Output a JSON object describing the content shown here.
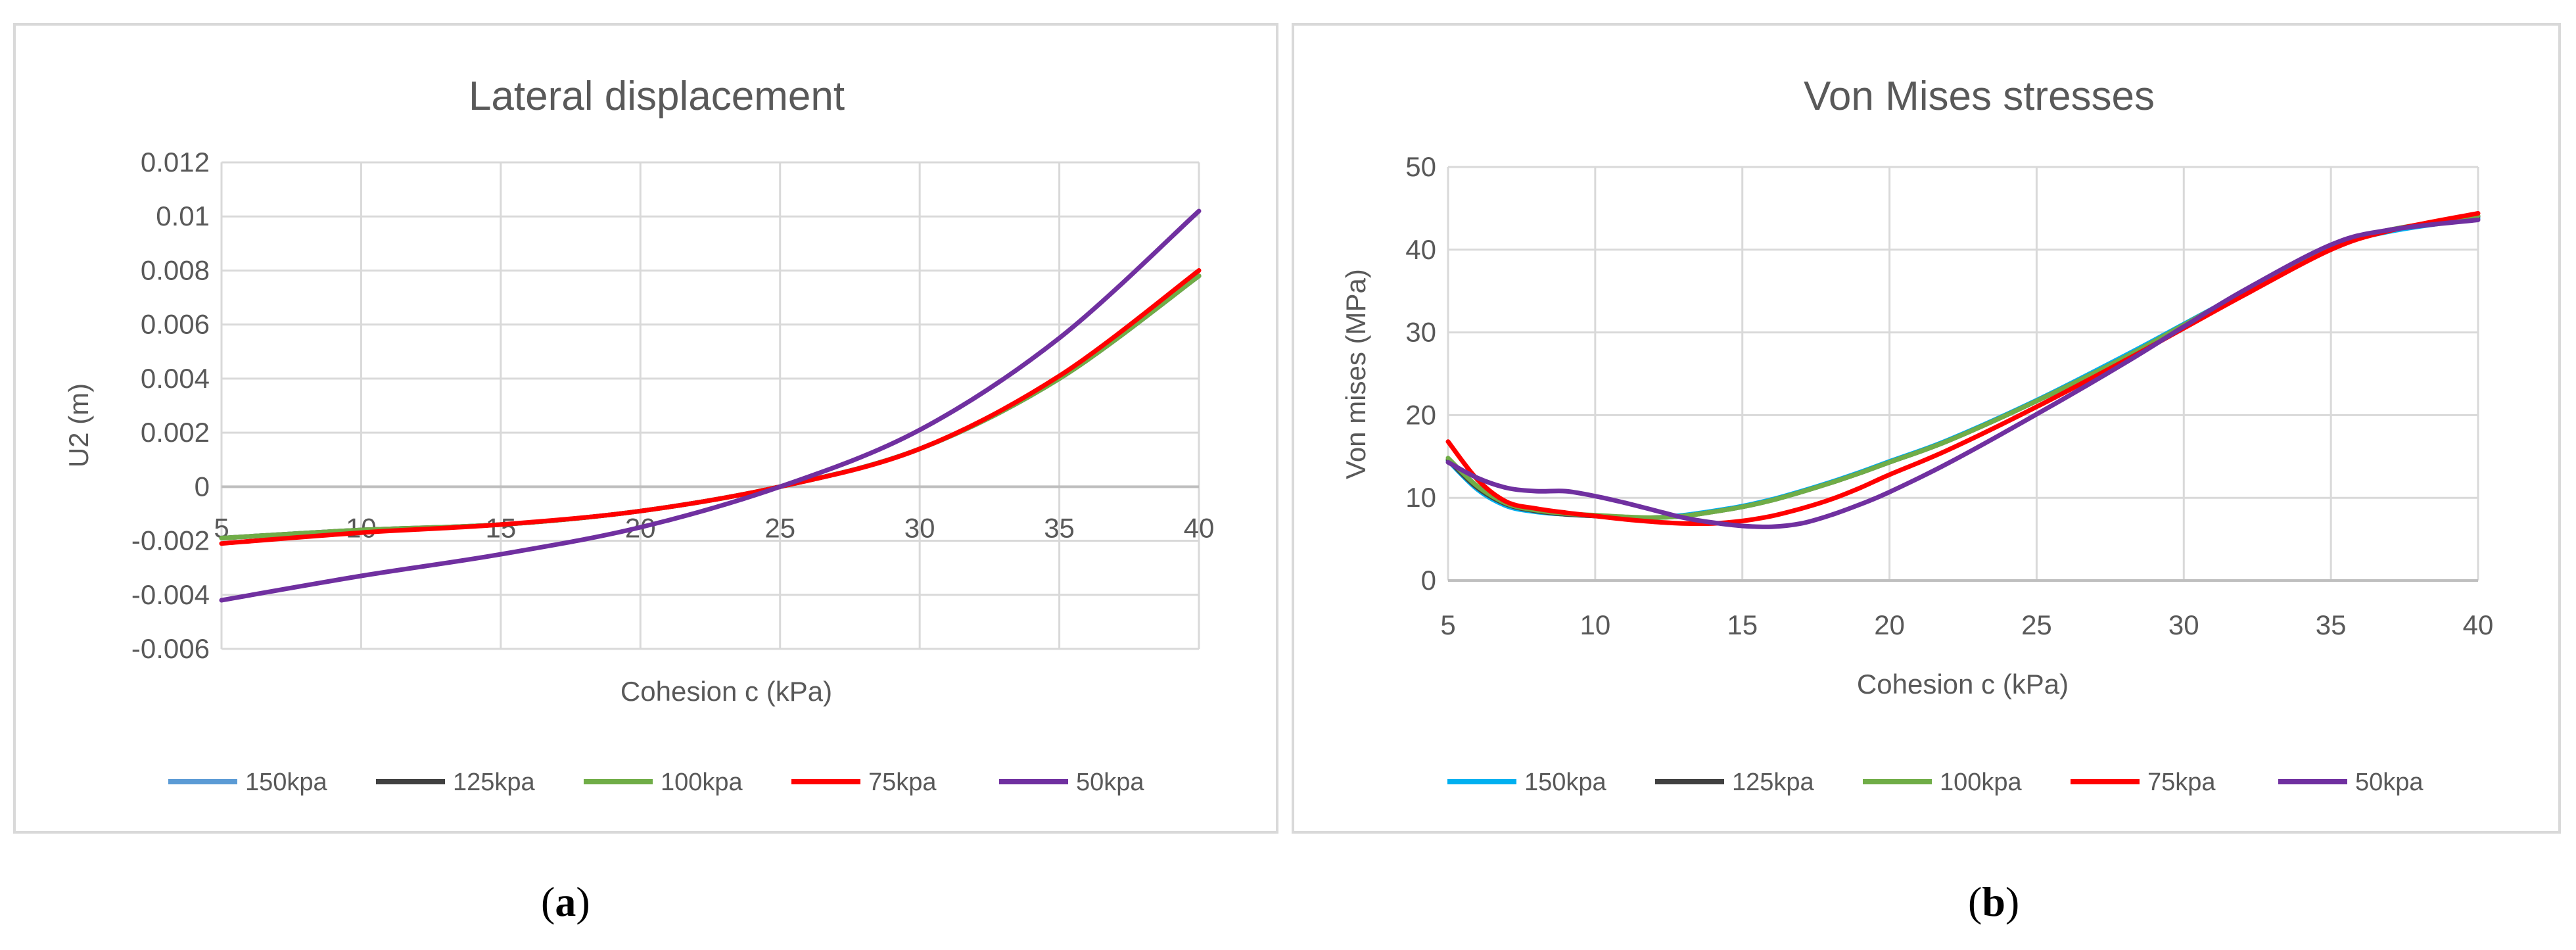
{
  "chart_data": [
    {
      "type": "line",
      "panel": "a",
      "title": "Lateral displacement",
      "xlabel": "Cohesion c (kPa)",
      "ylabel": "U2 (m)",
      "xlim": [
        5,
        40
      ],
      "ylim": [
        -0.006,
        0.012
      ],
      "x_ticks": [
        "5",
        "10",
        "15",
        "20",
        "25",
        "30",
        "35",
        "40"
      ],
      "y_ticks": [
        "0.012",
        "0.01",
        "0.008",
        "0.006",
        "0.004",
        "0.002",
        "0",
        "-0.002",
        "-0.004",
        "-0.006"
      ],
      "x": [
        5,
        10,
        15,
        20,
        25,
        30,
        35,
        40
      ],
      "series": [
        {
          "name": "150kpa",
          "color": "#5b9bd5",
          "values": [
            -0.0019,
            -0.0016,
            -0.0014,
            -0.0009,
            0.0,
            0.0014,
            0.004,
            0.0078
          ]
        },
        {
          "name": "125kpa",
          "color": "#404040",
          "values": [
            -0.0019,
            -0.0016,
            -0.0014,
            -0.0009,
            0.0,
            0.0014,
            0.004,
            0.0078
          ]
        },
        {
          "name": "100kpa",
          "color": "#70ad47",
          "values": [
            -0.0019,
            -0.0016,
            -0.0014,
            -0.0009,
            0.0,
            0.0014,
            0.004,
            0.0078
          ]
        },
        {
          "name": "75kpa",
          "color": "#ff0000",
          "values": [
            -0.0021,
            -0.0017,
            -0.0014,
            -0.0009,
            0.0,
            0.0014,
            0.0041,
            0.008
          ]
        },
        {
          "name": "50kpa",
          "color": "#7030a0",
          "values": [
            -0.0042,
            -0.0033,
            -0.0025,
            -0.0015,
            0.0,
            0.0021,
            0.0055,
            0.0102
          ]
        }
      ]
    },
    {
      "type": "line",
      "panel": "b",
      "title": "Von Mises stresses",
      "xlabel": "Cohesion c (kPa)",
      "ylabel": "Von mises (MPa)",
      "xlim": [
        5,
        40
      ],
      "ylim": [
        0,
        50
      ],
      "x_ticks": [
        "5",
        "10",
        "15",
        "20",
        "25",
        "30",
        "35",
        "40"
      ],
      "y_ticks": [
        "50",
        "40",
        "30",
        "20",
        "10",
        "0"
      ],
      "x": [
        5,
        6,
        7,
        8,
        9,
        10,
        11,
        12,
        13,
        14,
        15,
        16,
        17,
        18,
        19,
        20,
        22,
        25,
        28,
        30,
        32,
        35,
        37,
        40
      ],
      "series": [
        {
          "name": "150kpa",
          "color": "#00b0f0",
          "values": [
            14.5,
            11.0,
            9.0,
            8.3,
            8.0,
            7.8,
            7.6,
            7.6,
            7.9,
            8.4,
            9.0,
            9.8,
            10.8,
            11.9,
            13.1,
            14.4,
            17.0,
            21.8,
            27.2,
            31.0,
            34.8,
            40.2,
            42.2,
            43.8
          ]
        },
        {
          "name": "125kpa",
          "color": "#404040",
          "values": [
            14.6,
            11.2,
            9.2,
            8.4,
            8.0,
            7.8,
            7.6,
            7.6,
            7.8,
            8.3,
            8.9,
            9.7,
            10.7,
            11.8,
            13.0,
            14.3,
            16.9,
            21.7,
            27.0,
            30.9,
            34.8,
            40.3,
            42.4,
            44.0
          ]
        },
        {
          "name": "100kpa",
          "color": "#70ad47",
          "values": [
            14.8,
            11.4,
            9.3,
            8.5,
            8.1,
            7.9,
            7.7,
            7.6,
            7.8,
            8.3,
            8.9,
            9.7,
            10.7,
            11.8,
            13.0,
            14.3,
            16.9,
            21.7,
            27.0,
            30.9,
            34.8,
            40.3,
            42.4,
            44.1
          ]
        },
        {
          "name": "75kpa",
          "color": "#ff0000",
          "values": [
            16.8,
            12.2,
            9.5,
            8.7,
            8.2,
            7.8,
            7.4,
            7.1,
            6.9,
            6.9,
            7.2,
            7.8,
            8.7,
            9.8,
            11.2,
            12.8,
            15.8,
            21.0,
            26.6,
            30.5,
            34.4,
            40.0,
            42.3,
            44.4
          ]
        },
        {
          "name": "50kpa",
          "color": "#7030a0",
          "values": [
            14.3,
            12.4,
            11.2,
            10.8,
            10.8,
            10.2,
            9.4,
            8.5,
            7.6,
            7.0,
            6.6,
            6.5,
            6.9,
            7.9,
            9.2,
            10.7,
            14.2,
            20.1,
            26.3,
            30.7,
            35.0,
            40.6,
            42.4,
            43.6
          ]
        }
      ]
    }
  ],
  "captions": {
    "a": "a",
    "b": "b"
  }
}
